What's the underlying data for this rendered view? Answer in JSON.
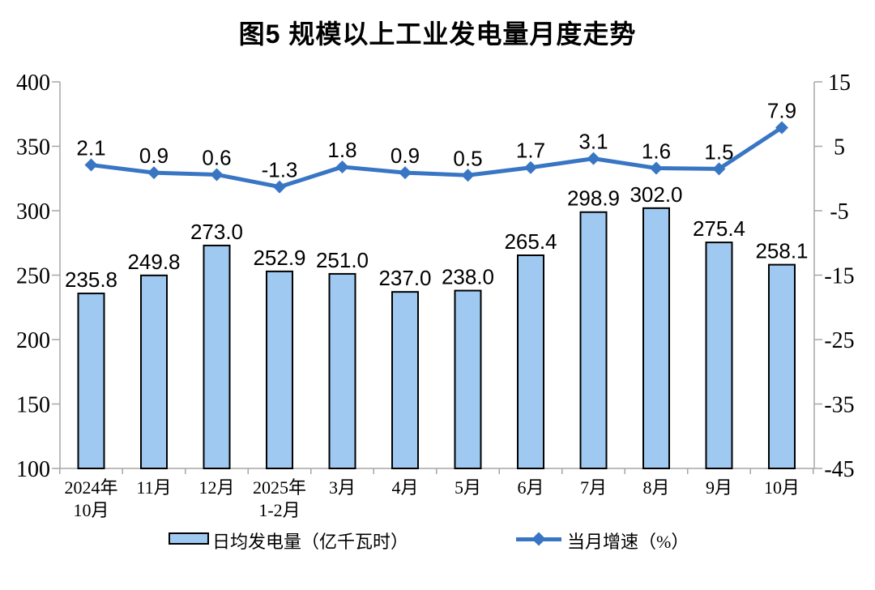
{
  "title": "图5  规模以上工业发电量月度走势",
  "legend": {
    "bar_label": "日均发电量（亿千瓦时）",
    "line_label": "当月增速（%）"
  },
  "colors": {
    "bar_fill": "#9FC9F0",
    "bar_border": "#000000",
    "line": "#3876C4",
    "axis": "#A6A6A6",
    "text": "#000000"
  },
  "chart_data": {
    "type": "bar",
    "subtype": "bar+line combo, dual y-axes",
    "title": "图5  规模以上工业发电量月度走势",
    "categories": [
      [
        "2024年",
        "10月"
      ],
      [
        "11月"
      ],
      [
        "12月"
      ],
      [
        "2025年",
        "1-2月"
      ],
      [
        "3月"
      ],
      [
        "4月"
      ],
      [
        "5月"
      ],
      [
        "6月"
      ],
      [
        "7月"
      ],
      [
        "8月"
      ],
      [
        "9月"
      ],
      [
        "10月"
      ]
    ],
    "series": [
      {
        "name": "日均发电量（亿千瓦时）",
        "type": "bar",
        "axis": "left",
        "values": [
          235.8,
          249.8,
          273.0,
          252.9,
          251.0,
          237.0,
          238.0,
          265.4,
          298.9,
          302.0,
          275.4,
          258.1
        ]
      },
      {
        "name": "当月增速（%）",
        "type": "line",
        "axis": "right",
        "values": [
          2.1,
          0.9,
          0.6,
          -1.3,
          1.8,
          0.9,
          0.5,
          1.7,
          3.1,
          1.6,
          1.5,
          7.9
        ]
      }
    ],
    "left_axis": {
      "min": 100,
      "max": 400,
      "step": 50,
      "ticks": [
        100,
        150,
        200,
        250,
        300,
        350,
        400
      ]
    },
    "right_axis": {
      "min": -45,
      "max": 15,
      "step": 10,
      "ticks": [
        -45,
        -35,
        -25,
        -15,
        -5,
        5,
        15
      ]
    },
    "grid": false,
    "legend_position": "bottom",
    "data_labels": true
  }
}
